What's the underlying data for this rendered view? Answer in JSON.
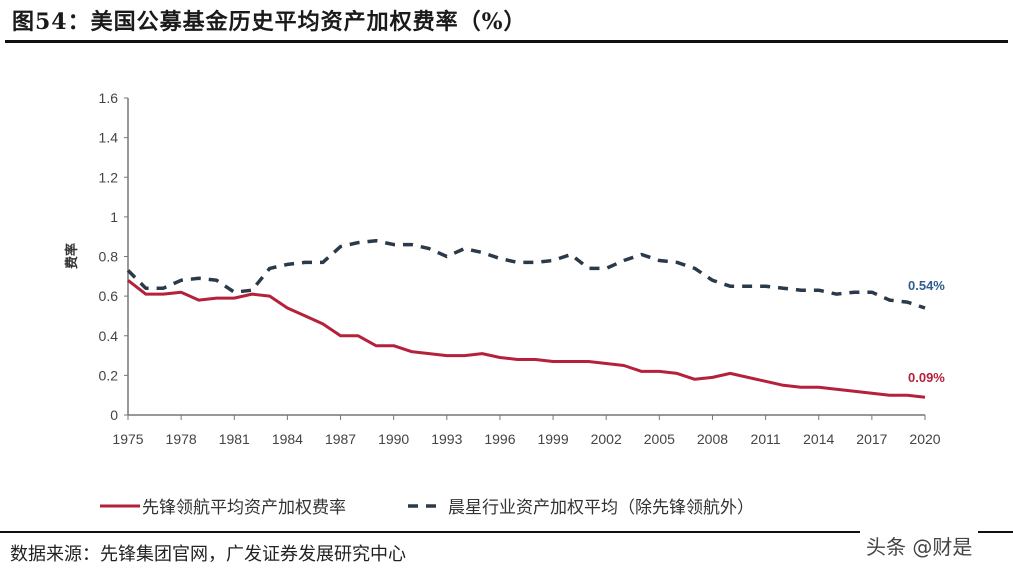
{
  "header": {
    "title": "图54：美国公募基金历史平均资产加权费率（%）"
  },
  "footer": {
    "source": "数据来源：先锋集团官网，广发证券发展研究中心",
    "watermark": "头条 @财是"
  },
  "colors": {
    "vanguard": "#b5213a",
    "industry": "#2b3a4a",
    "label_vanguard": "#b5213a",
    "label_industry": "#2f5d8c"
  },
  "chart_data": {
    "type": "line",
    "title": "美国公募基金历史平均资产加权费率（%）",
    "xlabel": "",
    "ylabel": "费率",
    "ylim": [
      0,
      1.6
    ],
    "yticks": [
      0,
      0.2,
      0.4,
      0.6,
      0.8,
      1,
      1.2,
      1.4,
      1.6
    ],
    "ytick_labels": [
      "0",
      "0.2",
      "0.4",
      "0.6",
      "0.8",
      "1",
      "1.2",
      "1.4",
      "1.6"
    ],
    "xtick_labels": [
      "1975",
      "1978",
      "1981",
      "1984",
      "1987",
      "1990",
      "1993",
      "1996",
      "1999",
      "2002",
      "2005",
      "2008",
      "2011",
      "2014",
      "2017",
      "2020"
    ],
    "grid": false,
    "legend_position": "bottom",
    "x": [
      1975,
      1976,
      1977,
      1978,
      1979,
      1980,
      1981,
      1982,
      1983,
      1984,
      1985,
      1986,
      1987,
      1988,
      1989,
      1990,
      1991,
      1992,
      1993,
      1994,
      1995,
      1996,
      1997,
      1998,
      1999,
      2000,
      2001,
      2002,
      2003,
      2004,
      2005,
      2006,
      2007,
      2008,
      2009,
      2010,
      2011,
      2012,
      2013,
      2014,
      2015,
      2016,
      2017,
      2018,
      2019,
      2020
    ],
    "series": [
      {
        "name": "先锋领航平均资产加权费率",
        "style": "solid",
        "values": [
          0.68,
          0.61,
          0.61,
          0.62,
          0.58,
          0.59,
          0.59,
          0.61,
          0.6,
          0.54,
          0.5,
          0.46,
          0.4,
          0.4,
          0.35,
          0.35,
          0.32,
          0.31,
          0.3,
          0.3,
          0.31,
          0.29,
          0.28,
          0.28,
          0.27,
          0.27,
          0.27,
          0.26,
          0.25,
          0.22,
          0.22,
          0.21,
          0.18,
          0.19,
          0.21,
          0.19,
          0.17,
          0.15,
          0.14,
          0.14,
          0.13,
          0.12,
          0.11,
          0.1,
          0.1,
          0.09
        ],
        "end_label": "0.09%"
      },
      {
        "name": "晨星行业资产加权平均（除先锋领航外）",
        "style": "dashed",
        "values": [
          0.73,
          0.64,
          0.64,
          0.68,
          0.69,
          0.68,
          0.62,
          0.63,
          0.74,
          0.76,
          0.77,
          0.77,
          0.85,
          0.87,
          0.88,
          0.86,
          0.86,
          0.84,
          0.8,
          0.84,
          0.82,
          0.79,
          0.77,
          0.77,
          0.78,
          0.81,
          0.74,
          0.74,
          0.78,
          0.81,
          0.78,
          0.77,
          0.74,
          0.68,
          0.65,
          0.65,
          0.65,
          0.64,
          0.63,
          0.63,
          0.61,
          0.62,
          0.62,
          0.58,
          0.57,
          0.54
        ],
        "end_label": "0.54%"
      }
    ]
  }
}
